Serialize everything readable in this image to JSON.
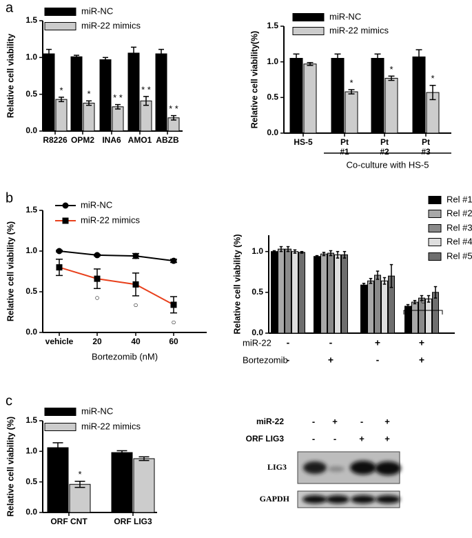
{
  "chart_data": [
    {
      "type": "bar",
      "panel_label": "a",
      "y_label": "Relative cell viability",
      "categories": [
        "R8226",
        "OPM2",
        "INA6",
        "AMO1",
        "ABZB"
      ],
      "series": [
        {
          "name": "miR-NC",
          "color": "#000000",
          "values": [
            1.05,
            1.01,
            0.97,
            1.06,
            1.05
          ],
          "errors": [
            0.06,
            0.02,
            0.03,
            0.08,
            0.06
          ]
        },
        {
          "name": "miR-22 mimics",
          "color": "#cccccc",
          "values": [
            0.43,
            0.38,
            0.33,
            0.41,
            0.18
          ],
          "errors": [
            0.03,
            0.03,
            0.03,
            0.06,
            0.03
          ],
          "annotations": [
            "*",
            "*",
            "* *",
            "* *",
            "* *"
          ]
        }
      ],
      "ylim": [
        0,
        1.5
      ],
      "yticks": [
        {
          "value": 0,
          "label": "0.0"
        },
        0.5,
        {
          "value": 1,
          "label": "1.0"
        },
        1.5
      ]
    },
    {
      "type": "bar",
      "y_label": "Relative cell viability(%)",
      "categories": [
        [
          "HS-5"
        ],
        [
          "Pt",
          "#1"
        ],
        [
          "Pt",
          "#2"
        ],
        [
          "Pt",
          "#3"
        ]
      ],
      "group_label": "Co-culture with HS-5",
      "series": [
        {
          "name": "miR-NC",
          "color": "#000000",
          "values": [
            1.05,
            1.05,
            1.05,
            1.07
          ],
          "errors": [
            0.06,
            0.06,
            0.06,
            0.1
          ]
        },
        {
          "name": "miR-22 mimics",
          "color": "#cccccc",
          "values": [
            0.97,
            0.58,
            0.77,
            0.57
          ],
          "errors": [
            0.02,
            0.03,
            0.03,
            0.1
          ],
          "annotations": [
            null,
            "*",
            "*",
            "*"
          ]
        }
      ],
      "ylim": [
        0,
        1.5
      ],
      "yticks": [
        {
          "value": 0,
          "label": "0.0"
        },
        0.5,
        {
          "value": 1,
          "label": "1.0"
        },
        1.5
      ]
    },
    {
      "type": "line",
      "panel_label": "b",
      "y_label": "Relative cell viability (%)",
      "x_label": "Bortezomib (nM)",
      "categories": [
        "vehicle",
        "20",
        "40",
        "60"
      ],
      "series": [
        {
          "name": "miR-NC",
          "color": "#000000",
          "marker": "circle",
          "values": [
            1.0,
            0.95,
            0.94,
            0.88
          ],
          "errors": [
            0.01,
            0.01,
            0.03,
            0.02
          ]
        },
        {
          "name": "miR-22 mimics",
          "color": "#e8401c",
          "marker": "square",
          "values": [
            0.8,
            0.66,
            0.59,
            0.34
          ],
          "errors": [
            0.1,
            0.12,
            0.14,
            0.1
          ],
          "annotations": [
            null,
            "○",
            "○",
            "○"
          ]
        }
      ],
      "ylim": [
        0,
        1.5
      ],
      "yticks": [
        {
          "value": 0,
          "label": "0.0"
        },
        0.5,
        {
          "value": 1,
          "label": "1.0"
        },
        1.5
      ]
    },
    {
      "type": "bar",
      "y_label": "Relative cell viability (%)",
      "conditions": [
        {
          "label": "miR-22",
          "signs": [
            "-",
            "-",
            "+",
            "+"
          ]
        },
        {
          "label": "Bortezomib",
          "signs": [
            "-",
            "+",
            "-",
            "+"
          ]
        }
      ],
      "bracket_annotation": "○",
      "series": [
        {
          "name": "Rel #1",
          "color": "#000000",
          "values": [
            1.0,
            0.94,
            0.59,
            0.33
          ],
          "errors": [
            0.01,
            0.01,
            0.02,
            0.02
          ]
        },
        {
          "name": "Rel #2",
          "color": "#a8a8a8",
          "values": [
            1.03,
            0.97,
            0.64,
            0.38
          ],
          "errors": [
            0.03,
            0.02,
            0.03,
            0.02
          ]
        },
        {
          "name": "Rel #3",
          "color": "#8a8a8a",
          "values": [
            1.03,
            0.98,
            0.71,
            0.43
          ],
          "errors": [
            0.03,
            0.03,
            0.05,
            0.03
          ]
        },
        {
          "name": "Rel #4",
          "color": "#dedede",
          "values": [
            1.0,
            0.96,
            0.64,
            0.42
          ],
          "errors": [
            0.02,
            0.04,
            0.04,
            0.04
          ]
        },
        {
          "name": "Rel #5",
          "color": "#6e6e6e",
          "values": [
            0.99,
            0.96,
            0.7,
            0.5
          ],
          "errors": [
            0.01,
            0.04,
            0.14,
            0.07
          ]
        }
      ],
      "ylim": [
        0,
        1.2
      ],
      "yticks": [
        {
          "value": 0,
          "label": "0.0"
        },
        0.5,
        {
          "value": 1,
          "label": "1.0"
        }
      ]
    },
    {
      "type": "bar",
      "panel_label": "c",
      "y_label": "Relative cell viability (%)",
      "categories": [
        "ORF CNT",
        "ORF LIG3"
      ],
      "series": [
        {
          "name": "miR-NC",
          "color": "#000000",
          "values": [
            1.06,
            0.98
          ],
          "errors": [
            0.08,
            0.03
          ]
        },
        {
          "name": "miR-22 mimics",
          "color": "#cccccc",
          "values": [
            0.46,
            0.88
          ],
          "errors": [
            0.05,
            0.03
          ],
          "annotations": [
            "*",
            null
          ]
        }
      ],
      "ylim": [
        0,
        1.5
      ],
      "yticks": [
        {
          "value": 0,
          "label": "0.0"
        },
        0.5,
        {
          "value": 1,
          "label": "1.0"
        },
        1.5
      ]
    }
  ],
  "blot": {
    "rows": [
      {
        "label": "miR-22",
        "signs": [
          "-",
          "+",
          "-",
          "+"
        ]
      },
      {
        "label": "ORF LIG3",
        "signs": [
          "-",
          "-",
          "+",
          "+"
        ]
      }
    ],
    "bands": [
      "LIG3",
      "GAPDH"
    ]
  }
}
